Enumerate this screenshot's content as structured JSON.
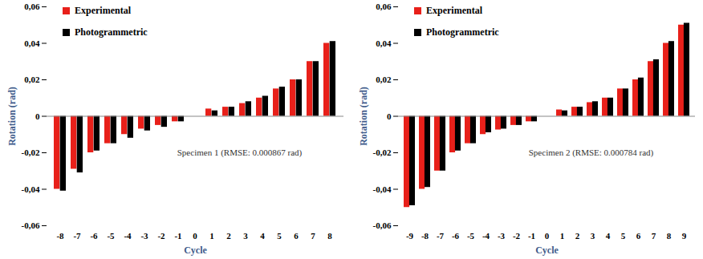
{
  "chart_data": [
    {
      "type": "bar",
      "categories": [
        -8,
        -7,
        -6,
        -5,
        -4,
        -3,
        -2,
        -1,
        0,
        1,
        2,
        3,
        4,
        5,
        6,
        7,
        8
      ],
      "series": [
        {
          "name": "Experimental",
          "color": "#e8201a",
          "values": [
            -0.04,
            -0.029,
            -0.02,
            -0.015,
            -0.01,
            -0.007,
            -0.005,
            -0.003,
            0,
            0.004,
            0.005,
            0.007,
            0.01,
            0.015,
            0.02,
            0.03,
            0.04
          ]
        },
        {
          "name": "Photogrammetric",
          "color": "#000000",
          "values": [
            -0.041,
            -0.031,
            -0.019,
            -0.015,
            -0.012,
            -0.008,
            -0.006,
            -0.003,
            0,
            0.003,
            0.005,
            0.008,
            0.011,
            0.016,
            0.02,
            0.03,
            0.041
          ]
        }
      ],
      "xlabel": "Cycle",
      "ylabel": "Rotation (rad)",
      "annotation": "Specimen 1 (RMSE: 0.000867 rad)",
      "ylim": [
        -0.06,
        0.06
      ],
      "yticks": [
        {
          "value": -0.06,
          "label": "-0,06"
        },
        {
          "value": -0.04,
          "label": "-0,04"
        },
        {
          "value": -0.02,
          "label": "-0,02"
        },
        0,
        {
          "value": 0.02,
          "label": "0,02"
        },
        {
          "value": 0.04,
          "label": "0,04"
        },
        {
          "value": 0.06,
          "label": "0,06"
        }
      ],
      "legend": "top-left",
      "grid": false
    },
    {
      "type": "bar",
      "categories": [
        -9,
        -8,
        -7,
        -6,
        -5,
        -4,
        -3,
        -2,
        -1,
        0,
        1,
        2,
        3,
        4,
        5,
        6,
        7,
        8,
        9
      ],
      "series": [
        {
          "name": "Experimental",
          "color": "#e8201a",
          "values": [
            -0.05,
            -0.04,
            -0.03,
            -0.02,
            -0.015,
            -0.01,
            -0.0075,
            -0.005,
            -0.003,
            0,
            0.0035,
            0.005,
            0.0075,
            0.01,
            0.015,
            0.02,
            0.03,
            0.04,
            0.05
          ]
        },
        {
          "name": "Photogrammetric",
          "color": "#000000",
          "values": [
            -0.049,
            -0.039,
            -0.03,
            -0.019,
            -0.015,
            -0.009,
            -0.007,
            -0.005,
            -0.003,
            0,
            0.003,
            0.005,
            0.008,
            0.01,
            0.015,
            0.021,
            0.031,
            0.041,
            0.051
          ]
        }
      ],
      "xlabel": "Cycle",
      "ylabel": "Rotation (rad)",
      "annotation": "Specimen 2 (RMSE: 0.000784 rad)",
      "ylim": [
        -0.06,
        0.06
      ],
      "yticks": [
        {
          "value": -0.06,
          "label": "-0,06"
        },
        {
          "value": -0.04,
          "label": "-0,04"
        },
        {
          "value": -0.02,
          "label": "-0,02"
        },
        0,
        {
          "value": 0.02,
          "label": "0,02"
        },
        {
          "value": 0.04,
          "label": "0,04"
        },
        {
          "value": 0.06,
          "label": "0,06"
        }
      ],
      "legend": "top-left",
      "grid": false
    }
  ]
}
